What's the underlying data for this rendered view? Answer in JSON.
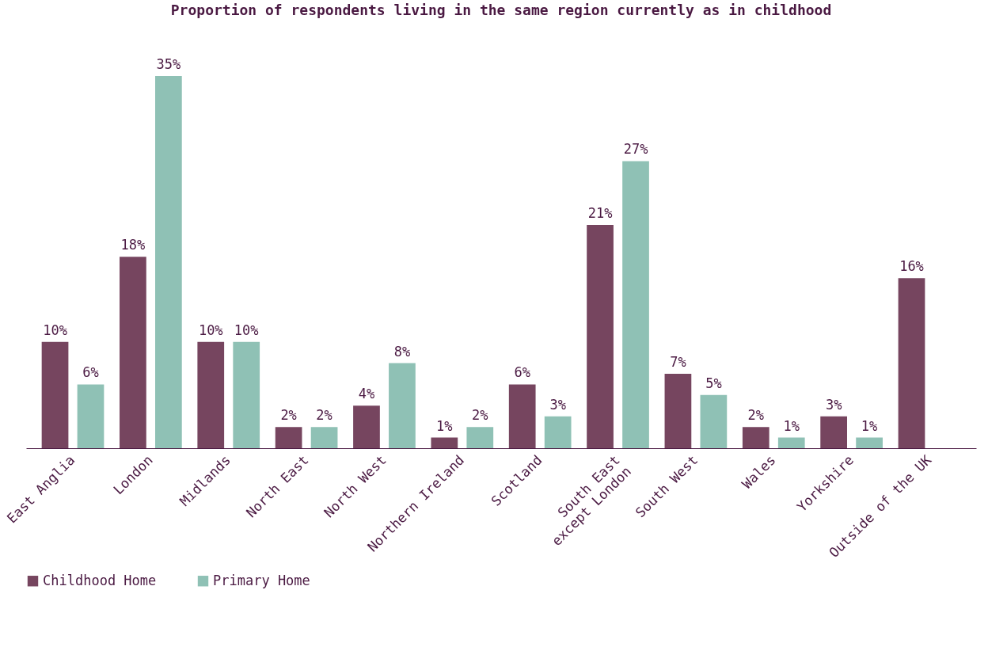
{
  "chart_data": {
    "type": "bar",
    "title": "Proportion of respondents living in the same region currently as in childhood",
    "categories": [
      "East Anglia",
      "London",
      "Midlands",
      "North East",
      "North West",
      "Northern Ireland",
      "Scotland",
      "South East\nexcept London",
      "South West",
      "Wales",
      "Yorkshire",
      "Outside of the UK"
    ],
    "series": [
      {
        "name": "Childhood Home",
        "color": "#76455f",
        "values": [
          10,
          18,
          10,
          2,
          4,
          1,
          6,
          21,
          7,
          2,
          3,
          16
        ],
        "value_labels": [
          "10%",
          "18%",
          "10%",
          "2%",
          "4%",
          "1%",
          "6%",
          "21%",
          "7%",
          "2%",
          "3%",
          "16%"
        ]
      },
      {
        "name": "Primary Home",
        "color": "#8fc1b5",
        "values": [
          6,
          35,
          10,
          2,
          8,
          2,
          3,
          27,
          5,
          1,
          1,
          null
        ],
        "value_labels": [
          "6%",
          "35%",
          "10%",
          "2%",
          "8%",
          "2%",
          "3%",
          "27%",
          "5%",
          "1%",
          "1%",
          null
        ]
      }
    ],
    "legend": "bottom",
    "grid": false
  }
}
